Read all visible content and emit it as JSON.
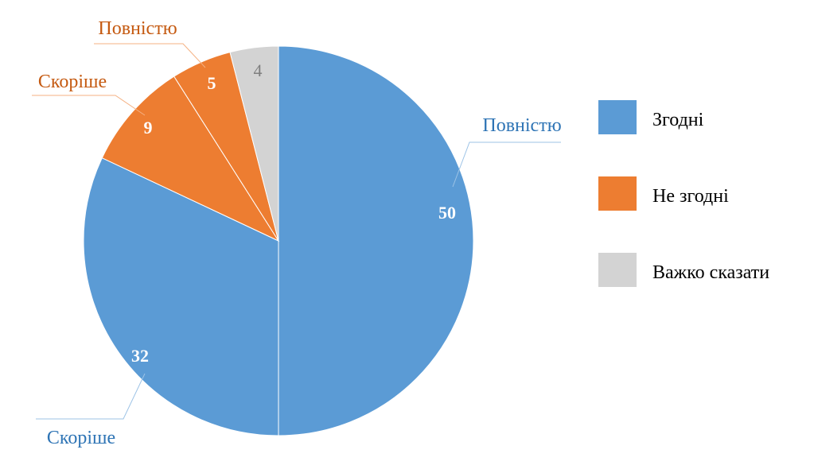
{
  "chart_data": {
    "type": "pie",
    "start_angle_deg": 0,
    "direction": "clockwise",
    "slices": [
      {
        "value": 50,
        "label": "50",
        "category": "Повністю",
        "group": "Згодні",
        "color": "#5B9BD5",
        "value_color": "#ffffff",
        "category_color": "#2E74B5"
      },
      {
        "value": 32,
        "label": "32",
        "category": "Скоріше",
        "group": "Згодні",
        "color": "#5B9BD5",
        "value_color": "#ffffff",
        "category_color": "#2E74B5"
      },
      {
        "value": 9,
        "label": "9",
        "category": "Скоріше",
        "group": "Не згодні",
        "color": "#ED7D31",
        "value_color": "#ffffff",
        "category_color": "#C55A11"
      },
      {
        "value": 5,
        "label": "5",
        "category": "Повністю",
        "group": "Не згодні",
        "color": "#ED7D31",
        "value_color": "#ffffff",
        "category_color": "#C55A11"
      },
      {
        "value": 4,
        "label": "4",
        "category": "",
        "group": "Важко сказати",
        "color": "#D3D3D3",
        "value_color": "#7F7F7F",
        "category_color": "#7F7F7F"
      }
    ],
    "legend": {
      "placement": "right",
      "entries": [
        {
          "name": "Згодні",
          "color": "#5B9BD5"
        },
        {
          "name": "Не згодні",
          "color": "#ED7D31"
        },
        {
          "name": "Важко сказати",
          "color": "#D3D3D3"
        }
      ]
    }
  }
}
